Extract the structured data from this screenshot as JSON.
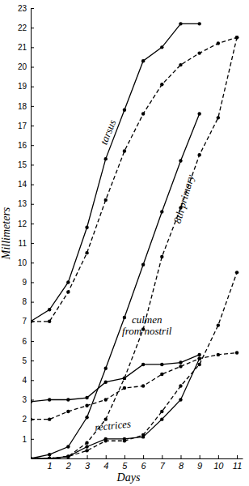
{
  "chart_data": {
    "type": "line",
    "x_label": "Days",
    "y_label": "Millimeters",
    "x": [
      0,
      1,
      2,
      3,
      4,
      5,
      6,
      7,
      8,
      9,
      10,
      11
    ],
    "xlim": [
      0,
      11.3
    ],
    "xticks": [
      1,
      2,
      3,
      4,
      5,
      6,
      7,
      8,
      9,
      10,
      11
    ],
    "ylim": [
      0,
      23
    ],
    "yticks": [
      1,
      2,
      3,
      4,
      5,
      6,
      7,
      8,
      9,
      10,
      11,
      12,
      13,
      14,
      15,
      16,
      17,
      18,
      19,
      20,
      21,
      22,
      23
    ],
    "grid": false,
    "annotations": [
      "tarsus",
      "8th primary",
      "culmen from nostril",
      "rectrices"
    ],
    "series": [
      {
        "color": "#000000",
        "line_style": "solid",
        "marker": "circle",
        "values": [
          7,
          7.6,
          9,
          11.8,
          15.3,
          17.8,
          20.3,
          21,
          22.2,
          22.2,
          null,
          null
        ]
      },
      {
        "color": "#000000",
        "line_style": "dashed",
        "marker": "circle",
        "values": [
          7,
          7,
          8.5,
          10.5,
          13.2,
          15.7,
          17.6,
          19.1,
          20.1,
          20.7,
          21.2,
          21.5
        ]
      },
      {
        "color": "#000000",
        "line_style": "solid",
        "marker": "circle",
        "values": [
          0,
          0.2,
          0.6,
          2.1,
          4.6,
          7.2,
          9.9,
          12.6,
          15.2,
          17.6,
          null,
          null
        ]
      },
      {
        "color": "#000000",
        "line_style": "dashed",
        "marker": "circle",
        "values": [
          0,
          0,
          0.1,
          0.8,
          2,
          4.1,
          6.6,
          10.3,
          12.8,
          15.5,
          17.4,
          21.5
        ]
      },
      {
        "color": "#000000",
        "line_style": "solid",
        "marker": "circle",
        "values": [
          2.9,
          3,
          3,
          3.1,
          3.9,
          4.1,
          4.8,
          4.8,
          4.9,
          5.3,
          null,
          null
        ]
      },
      {
        "color": "#000000",
        "line_style": "dashed",
        "marker": "circle",
        "values": [
          2,
          2,
          2.4,
          2.7,
          3,
          3.6,
          3.7,
          4.3,
          4.7,
          5.1,
          5.3,
          5.4
        ]
      },
      {
        "color": "#000000",
        "line_style": "solid",
        "marker": "circle",
        "values": [
          0,
          0,
          0.1,
          0.6,
          1,
          1,
          1.1,
          2,
          3,
          5.1,
          null,
          null
        ]
      },
      {
        "color": "#000000",
        "line_style": "dashed",
        "marker": "circle",
        "values": [
          0,
          0,
          0.1,
          0.4,
          0.9,
          0.9,
          1.2,
          2.4,
          3.7,
          4.8,
          6.8,
          9.5
        ]
      }
    ]
  }
}
